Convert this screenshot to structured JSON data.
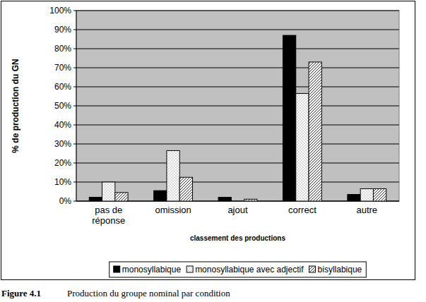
{
  "chart_data": {
    "type": "bar",
    "title": "Production du groupe nominal par condition",
    "figure_label": "Figure 4.1",
    "x_label": "classement des productions",
    "y_label": "% de production du GN",
    "categories": [
      "pas de réponse",
      "omission",
      "ajout",
      "correct",
      "autre"
    ],
    "series": [
      {
        "name": "monosyllabique",
        "color": "#000000",
        "values": [
          2,
          5.5,
          2,
          87,
          3.5
        ]
      },
      {
        "name": "monosyllabique avec adjectif",
        "color": "#ffffff",
        "values": [
          10,
          26.5,
          0,
          56.5,
          6.5
        ]
      },
      {
        "name": "bisyllabique",
        "color": "#ffffff",
        "values": [
          4.5,
          12.5,
          1,
          73,
          6.5
        ]
      }
    ],
    "ylim": [
      0,
      100
    ],
    "yticks": [
      {
        "value": 0,
        "label": "0%"
      },
      {
        "value": 10,
        "label": "10%"
      },
      {
        "value": 20,
        "label": "20%"
      },
      {
        "value": 30,
        "label": "30%"
      },
      {
        "value": 40,
        "label": "40%"
      },
      {
        "value": 50,
        "label": "50%"
      },
      {
        "value": 60,
        "label": "60%"
      },
      {
        "value": 70,
        "label": "70%"
      },
      {
        "value": 80,
        "label": "80%"
      },
      {
        "value": 90,
        "label": "90%"
      },
      {
        "value": 100,
        "label": "100%"
      }
    ],
    "grid": true,
    "legend": "bottom"
  }
}
